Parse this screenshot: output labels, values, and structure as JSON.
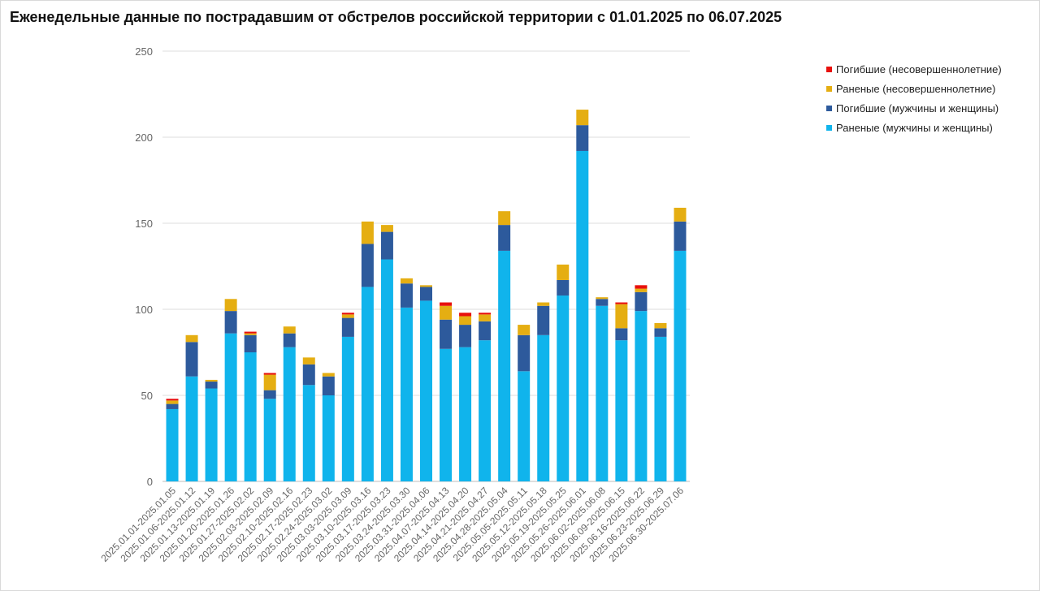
{
  "chart_data": {
    "type": "bar",
    "stacked": true,
    "title": "Еженедельные данные по пострадавшим от обстрелов российской территории с 01.01.2025 по 06.07.2025",
    "xlabel": "",
    "ylabel": "",
    "ylim": [
      0,
      250
    ],
    "yticks": [
      0,
      50,
      100,
      150,
      200,
      250
    ],
    "grid": true,
    "legend_position": "top-right",
    "categories": [
      "2025.01.01-2025.01.05",
      "2025.01.06-2025.01.12",
      "2025.01.13-2025.01.19",
      "2025.01.20-2025.01.26",
      "2025.01.27-2025.02.02",
      "2025.02.03-2025.02.09",
      "2025.02.10-2025.02.16",
      "2025.02.17-2025.02.23",
      "2025.02.24-2025.03.02",
      "2025.03.03-2025.03.09",
      "2025.03.10-2025.03.16",
      "2025.03.17-2025.03.23",
      "2025.03.24-2025.03.30",
      "2025.03.31-2025.04.06",
      "2025.04.07-2025.04.13",
      "2025.04.14-2025.04.20",
      "2025.04.21-2025.04.27",
      "2025.04.28-2025.05.04",
      "2025.05.05-2025.05.11",
      "2025.05.12-2025.05.18",
      "2025.05.19-2025.05.25",
      "2025.05.26-2025.06.01",
      "2025.06.02-2025.06.08",
      "2025.06.09-2025.06.15",
      "2025.06.16-2025.06.22",
      "2025.06.23-2025.06.29",
      "2025.06.30-2025.07.06"
    ],
    "series": [
      {
        "name": "Раненые (мужчины и женщины)",
        "color": "#10b4ec",
        "values": [
          42,
          61,
          54,
          86,
          75,
          48,
          78,
          56,
          50,
          84,
          113,
          129,
          101,
          105,
          77,
          78,
          82,
          134,
          64,
          85,
          108,
          192,
          102,
          82,
          99,
          84,
          134
        ]
      },
      {
        "name": "Погибшие (мужчины и женщины)",
        "color": "#2d5a9c",
        "values": [
          3,
          20,
          4,
          13,
          10,
          5,
          8,
          12,
          11,
          11,
          25,
          16,
          14,
          8,
          17,
          13,
          11,
          15,
          21,
          17,
          9,
          15,
          4,
          7,
          11,
          5,
          17
        ]
      },
      {
        "name": "Раненые (несовершеннолетние)",
        "color": "#e5ae12",
        "values": [
          2,
          4,
          1,
          7,
          1,
          9,
          4,
          4,
          2,
          2,
          13,
          4,
          3,
          1,
          8,
          5,
          4,
          8,
          6,
          2,
          9,
          9,
          1,
          14,
          2,
          3,
          8
        ]
      },
      {
        "name": "Погибшие (несовершеннолетние)",
        "color": "#e8100c",
        "values": [
          1,
          0,
          0,
          0,
          1,
          1,
          0,
          0,
          0,
          1,
          0,
          0,
          0,
          0,
          2,
          2,
          1,
          0,
          0,
          0,
          0,
          0,
          0,
          1,
          2,
          0,
          0
        ]
      }
    ],
    "legend_order": [
      3,
      2,
      1,
      0
    ]
  }
}
